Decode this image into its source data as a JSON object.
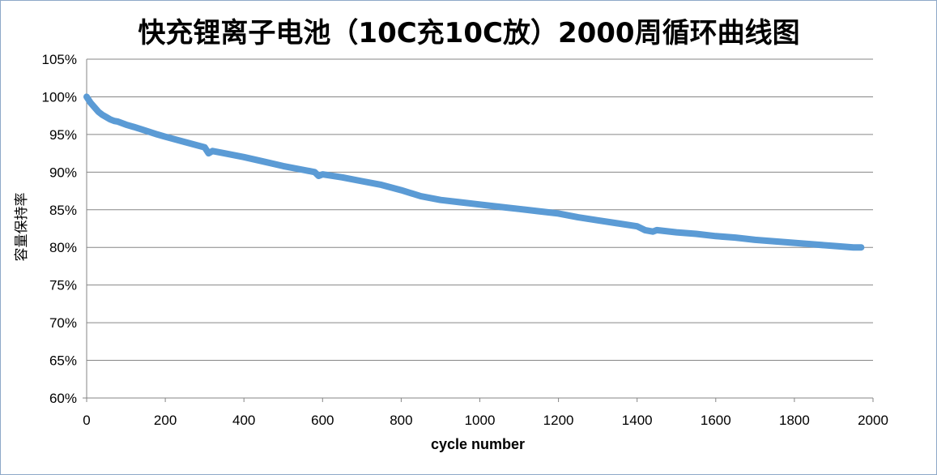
{
  "chart_data": {
    "type": "line",
    "title": "快充锂离子电池（10C充10C放）2000周循环曲线图",
    "xlabel": "cycle number",
    "ylabel": "容量保持率",
    "xlim": [
      0,
      2000
    ],
    "ylim": [
      0.6,
      1.05
    ],
    "x_ticks": [
      "0",
      "200",
      "400",
      "600",
      "800",
      "1000",
      "1200",
      "1400",
      "1600",
      "1800",
      "2000"
    ],
    "y_ticks": [
      "60%",
      "65%",
      "70%",
      "75%",
      "80%",
      "85%",
      "90%",
      "95%",
      "100%",
      "105%"
    ],
    "grid": "horizontal",
    "legend": "none",
    "series": [
      {
        "color": "#5b9bd5",
        "x": [
          0,
          10,
          20,
          30,
          40,
          50,
          60,
          70,
          80,
          100,
          120,
          150,
          180,
          200,
          250,
          300,
          310,
          320,
          350,
          400,
          450,
          500,
          550,
          580,
          590,
          600,
          650,
          700,
          750,
          800,
          850,
          900,
          950,
          1000,
          1050,
          1100,
          1150,
          1200,
          1250,
          1300,
          1350,
          1400,
          1420,
          1440,
          1450,
          1500,
          1550,
          1600,
          1650,
          1700,
          1750,
          1800,
          1850,
          1900,
          1950,
          1970
        ],
        "y": [
          1.0,
          0.992,
          0.986,
          0.98,
          0.976,
          0.973,
          0.97,
          0.968,
          0.967,
          0.963,
          0.96,
          0.955,
          0.95,
          0.947,
          0.94,
          0.933,
          0.925,
          0.928,
          0.925,
          0.92,
          0.914,
          0.908,
          0.903,
          0.9,
          0.895,
          0.897,
          0.893,
          0.888,
          0.883,
          0.876,
          0.868,
          0.863,
          0.86,
          0.857,
          0.854,
          0.851,
          0.848,
          0.845,
          0.84,
          0.836,
          0.832,
          0.828,
          0.823,
          0.821,
          0.823,
          0.82,
          0.818,
          0.815,
          0.813,
          0.81,
          0.808,
          0.806,
          0.804,
          0.802,
          0.8,
          0.8
        ]
      }
    ]
  }
}
